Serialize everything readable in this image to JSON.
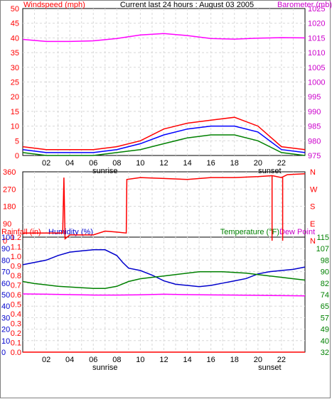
{
  "chart_data": [
    {
      "type": "line",
      "header": {
        "left_label": "Windspeed (mph)",
        "center_label": "Current last 24 hours : August 03 2005",
        "right_label": "Barometer (mb)"
      },
      "x_ticks": [
        "02",
        "04",
        "06",
        "08",
        "10",
        "12",
        "14",
        "16",
        "18",
        "20",
        "22"
      ],
      "x_annotations": [
        {
          "text": "sunrise",
          "hour": 7.0
        },
        {
          "text": "sunset",
          "hour": 21.0
        }
      ],
      "hours_range": [
        0,
        24
      ],
      "left_axis": {
        "ticks": [
          0,
          5,
          10,
          15,
          20,
          25,
          30,
          35,
          40,
          45,
          50
        ],
        "range": [
          0,
          50
        ],
        "color": "#ff0000"
      },
      "right_axis": {
        "ticks": [
          975,
          980,
          985,
          990,
          995,
          1000,
          1005,
          1010,
          1015,
          1020,
          1025
        ],
        "range": [
          975,
          1025
        ],
        "color": "#cc00cc"
      },
      "series": [
        {
          "axis": "right",
          "color": "#ff00ff",
          "x": [
            0,
            2,
            4,
            6,
            8,
            10,
            12,
            14,
            16,
            18,
            20,
            22,
            24
          ],
          "y": [
            1014.5,
            1013.8,
            1013.8,
            1014.0,
            1014.8,
            1016.0,
            1016.5,
            1015.8,
            1014.8,
            1014.6,
            1014.9,
            1015.1,
            1015.0
          ]
        },
        {
          "axis": "left",
          "color": "#ff0000",
          "x": [
            0,
            2,
            4,
            6,
            8,
            10,
            12,
            14,
            16,
            18,
            20,
            22,
            24
          ],
          "y": [
            3,
            2,
            2,
            2,
            3,
            5,
            9,
            11,
            12,
            13,
            10,
            3,
            2
          ]
        },
        {
          "axis": "left",
          "color": "#0000ff",
          "x": [
            0,
            2,
            4,
            6,
            8,
            10,
            12,
            14,
            16,
            18,
            20,
            22,
            24
          ],
          "y": [
            2,
            1,
            1,
            1,
            2,
            4,
            7,
            9,
            10,
            10,
            8,
            2,
            1
          ]
        },
        {
          "axis": "left",
          "color": "#008000",
          "x": [
            0,
            2,
            4,
            6,
            8,
            10,
            12,
            14,
            16,
            18,
            20,
            22,
            24
          ],
          "y": [
            1,
            0,
            0,
            0,
            1,
            2,
            4,
            6,
            7,
            7,
            5,
            1,
            0
          ]
        }
      ]
    },
    {
      "type": "line",
      "x_ticks": [],
      "hours_range": [
        0,
        24
      ],
      "left_axis": {
        "ticks": [
          0,
          90,
          180,
          270,
          360
        ],
        "range": [
          0,
          360
        ],
        "color": "#ff0000"
      },
      "right_labels": [
        "N",
        "W",
        "S",
        "E",
        "N"
      ],
      "series": [
        {
          "axis": "left",
          "color": "#ff0000",
          "x": [
            0,
            2,
            3.4,
            3.5,
            3.6,
            4,
            5,
            6,
            7,
            8,
            8.8,
            8.85,
            10,
            12,
            14,
            16,
            18,
            20,
            21.2,
            22,
            22.5,
            24
          ],
          "y": [
            40,
            40,
            40,
            330,
            10,
            30,
            30,
            30,
            50,
            45,
            40,
            320,
            330,
            325,
            320,
            330,
            330,
            335,
            340,
            330,
            345,
            350
          ]
        },
        {
          "axis": "left",
          "color": "#ff0000",
          "x": [
            21.2,
            21.2
          ],
          "y": [
            340,
            0
          ]
        },
        {
          "axis": "left",
          "color": "#ff0000",
          "x": [
            22.1,
            22.1
          ],
          "y": [
            330,
            0
          ]
        }
      ]
    },
    {
      "type": "line",
      "header": {
        "rain_label": "Rainfall (in)",
        "humidity_label": "Humidity (%)",
        "temp_label": "Temperature (°F)",
        "dew_label": "Dew Point"
      },
      "x_ticks": [
        "02",
        "04",
        "06",
        "08",
        "10",
        "12",
        "14",
        "16",
        "18",
        "20",
        "22"
      ],
      "x_annotations": [
        {
          "text": "sunrise",
          "hour": 7.0
        },
        {
          "text": "sunset",
          "hour": 21.0
        }
      ],
      "hours_range": [
        0,
        24
      ],
      "rain_axis": {
        "ticks": [
          "0.0",
          "0.1",
          "0.2",
          "0.3",
          "0.4",
          "0.5",
          "0.6",
          "0.7",
          "0.8",
          "0.9",
          "1.0",
          "1.1",
          "1.2"
        ],
        "range": [
          0,
          1.2
        ],
        "color": "#ff0000"
      },
      "humidity_axis": {
        "ticks": [
          0,
          10,
          20,
          30,
          40,
          50,
          60,
          70,
          80,
          90,
          100
        ],
        "range": [
          0,
          100
        ],
        "color": "#0000cc"
      },
      "temp_axis": {
        "ticks": [
          32,
          40,
          49,
          57,
          65,
          74,
          82,
          90,
          98,
          107,
          115
        ],
        "range": [
          32,
          115
        ],
        "color": "#008000"
      },
      "series": [
        {
          "axis": "humidity",
          "color": "#0000cc",
          "x": [
            0,
            1,
            2,
            3,
            4,
            5,
            6,
            7,
            8,
            8.5,
            9,
            10,
            11,
            12,
            13,
            14,
            15,
            16,
            17,
            18,
            19,
            20,
            21,
            22,
            23,
            24
          ],
          "y": [
            76,
            78,
            80,
            84,
            87,
            88,
            89,
            89,
            84,
            78,
            73,
            71,
            67,
            62,
            59,
            58,
            57,
            58,
            60,
            62,
            64,
            68,
            70,
            71,
            72,
            74
          ]
        },
        {
          "axis": "temp",
          "color": "#008000",
          "x": [
            0,
            1,
            2,
            3,
            4,
            5,
            6,
            7,
            8,
            9,
            10,
            11,
            12,
            13,
            14,
            15,
            16,
            17,
            18,
            19,
            20,
            21,
            22,
            23,
            24
          ],
          "y": [
            83,
            81.5,
            80.5,
            79.5,
            79,
            78.5,
            78,
            78,
            79.5,
            83,
            85,
            86,
            87,
            88,
            89,
            90,
            90,
            90,
            89.5,
            89,
            88,
            87,
            86,
            85,
            84
          ]
        },
        {
          "axis": "temp",
          "color": "#ff00ff",
          "x": [
            0,
            2,
            4,
            6,
            8,
            10,
            12,
            14,
            16,
            18,
            20,
            22,
            24
          ],
          "y": [
            74,
            73.8,
            73.5,
            73.2,
            73.2,
            73.4,
            73.8,
            73.5,
            73.3,
            73.2,
            73.0,
            72.8,
            72.6
          ]
        },
        {
          "axis": "rain",
          "color": "#ff0000",
          "x": [
            0,
            24
          ],
          "y": [
            0,
            0
          ]
        }
      ]
    }
  ]
}
